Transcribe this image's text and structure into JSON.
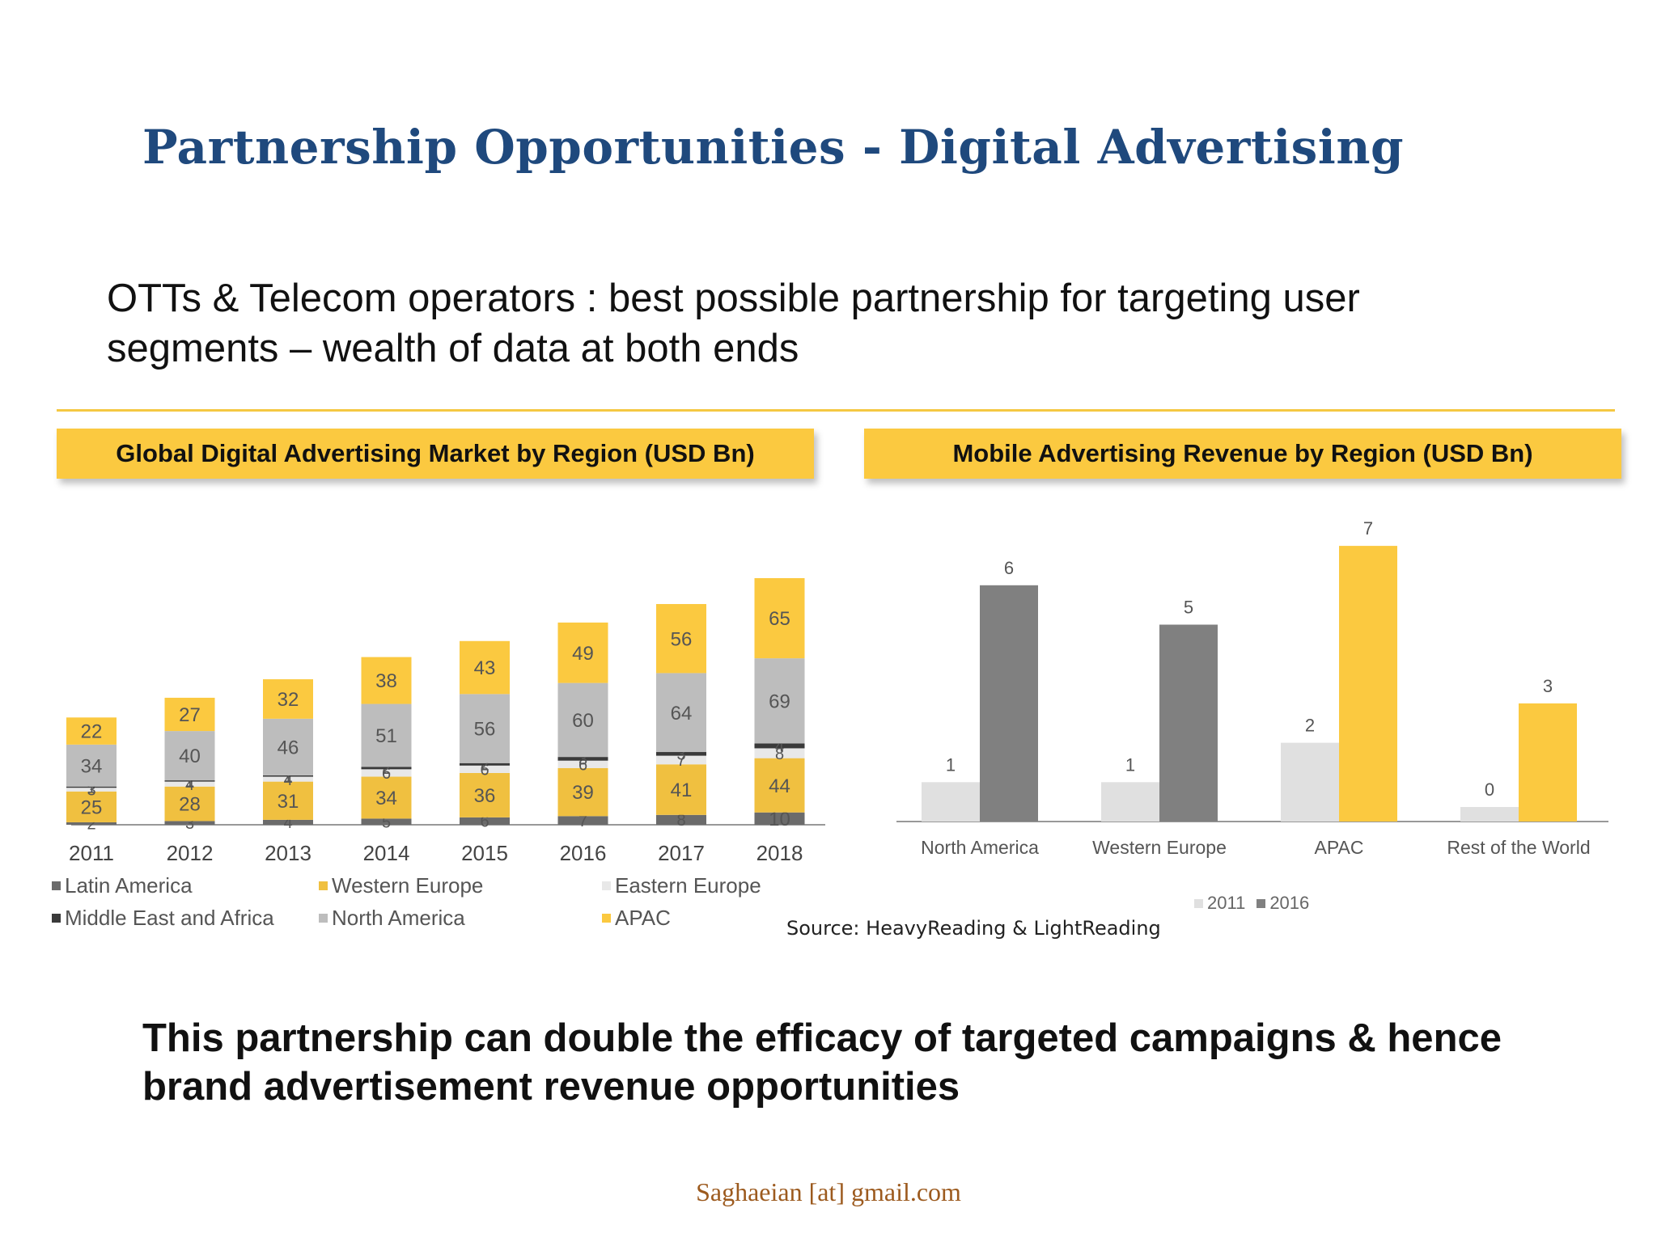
{
  "slide": {
    "title": "Partnership Opportunities - Digital Advertising",
    "intro": "OTTs & Telecom operators : best possible partnership for targeting user segments – wealth of data at both ends",
    "conclusion": "This partnership can double the efficacy of targeted campaigns & hence brand advertisement revenue opportunities",
    "source": "Source: HeavyReading & LightReading",
    "footer": "Saghaeian [at] gmail.com"
  },
  "colors": {
    "accent_yellow": "#fbc940",
    "title_blue": "#1f497d",
    "latin_america": "#6b6b6b",
    "western_europe": "#f0c040",
    "eastern_europe": "#e8e8e8",
    "middle_east_africa": "#3a3a3a",
    "north_america": "#bdbdbd",
    "apac": "#fbc940",
    "series_2011": "#e0e0e0",
    "series_2016": "#808080"
  },
  "chart_data": [
    {
      "type": "bar",
      "stacked": true,
      "title": "Global Digital Advertising Market by Region (USD Bn)",
      "categories": [
        "2011",
        "2012",
        "2013",
        "2014",
        "2015",
        "2016",
        "2017",
        "2018"
      ],
      "series": [
        {
          "name": "Latin America",
          "values": [
            2,
            3,
            4,
            5,
            6,
            7,
            8,
            10
          ]
        },
        {
          "name": "Western Europe",
          "values": [
            25,
            28,
            31,
            34,
            36,
            39,
            41,
            44
          ]
        },
        {
          "name": "Eastern Europe",
          "values": [
            3,
            4,
            4,
            6,
            6,
            6,
            7,
            8
          ]
        },
        {
          "name": "Middle East and Africa",
          "values": [
            1,
            1,
            1,
            2,
            2,
            3,
            3,
            4
          ]
        },
        {
          "name": "North America",
          "values": [
            34,
            40,
            46,
            51,
            56,
            60,
            64,
            69
          ]
        },
        {
          "name": "APAC",
          "values": [
            22,
            27,
            32,
            38,
            43,
            49,
            56,
            65
          ]
        }
      ],
      "grid": false,
      "legend": "bottom"
    },
    {
      "type": "bar",
      "title": "Mobile Advertising Revenue by Region (USD Bn)",
      "categories": [
        "North America",
        "Western Europe",
        "APAC",
        "Rest of the World"
      ],
      "series": [
        {
          "name": "2011",
          "values": [
            1,
            1,
            2,
            0
          ]
        },
        {
          "name": "2016",
          "values": [
            6,
            5,
            7,
            3
          ]
        }
      ],
      "grid": false,
      "legend": "bottom"
    }
  ]
}
